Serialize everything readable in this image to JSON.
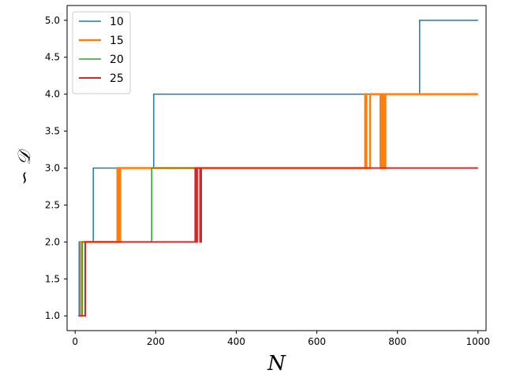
{
  "chart_data": {
    "type": "line",
    "title": "",
    "xlabel": "N",
    "ylabel": "∽ 𝒟",
    "xlim": [
      -20,
      1020
    ],
    "ylim": [
      0.8,
      5.2
    ],
    "xticks": [
      0,
      200,
      400,
      600,
      800,
      1000
    ],
    "yticks": [
      1.0,
      1.5,
      2.0,
      2.5,
      3.0,
      3.5,
      4.0,
      4.5,
      5.0
    ],
    "xtick_labels": [
      "0",
      "200",
      "400",
      "600",
      "800",
      "1000"
    ],
    "ytick_labels": [
      "1.0",
      "1.5",
      "2.0",
      "2.5",
      "3.0",
      "3.5",
      "4.0",
      "4.5",
      "5.0"
    ],
    "grid": false,
    "legend_position": "top-left",
    "series": [
      {
        "name": "10",
        "color": "#1f77b4",
        "width": 1.5,
        "points": [
          [
            10,
            1.0
          ],
          [
            10,
            2.0
          ],
          [
            45,
            2.0
          ],
          [
            45,
            3.0
          ],
          [
            195,
            3.0
          ],
          [
            195,
            4.0
          ],
          [
            855,
            4.0
          ],
          [
            855,
            5.0
          ],
          [
            1000,
            5.0
          ]
        ]
      },
      {
        "name": "15",
        "color": "#ff7f0e",
        "width": 2.5,
        "points": [
          [
            14,
            1.0
          ],
          [
            14,
            2.0
          ],
          [
            105,
            2.0
          ],
          [
            105,
            3.0
          ],
          [
            108,
            3.0
          ],
          [
            108,
            2.0
          ],
          [
            112,
            2.0
          ],
          [
            112,
            3.0
          ],
          [
            720,
            3.0
          ],
          [
            720,
            4.0
          ],
          [
            723,
            4.0
          ],
          [
            723,
            3.0
          ],
          [
            732,
            3.0
          ],
          [
            732,
            4.0
          ],
          [
            758,
            4.0
          ],
          [
            758,
            3.0
          ],
          [
            762,
            3.0
          ],
          [
            762,
            4.0
          ],
          [
            766,
            4.0
          ],
          [
            766,
            3.0
          ],
          [
            770,
            3.0
          ],
          [
            770,
            4.0
          ],
          [
            1000,
            4.0
          ]
        ]
      },
      {
        "name": "20",
        "color": "#2ca02c",
        "width": 1.5,
        "points": [
          [
            18,
            1.0
          ],
          [
            18,
            2.0
          ],
          [
            190,
            2.0
          ],
          [
            190,
            3.0
          ],
          [
            1000,
            3.0
          ]
        ]
      },
      {
        "name": "25",
        "color": "#d62728",
        "width": 2.0,
        "points": [
          [
            8,
            1.0
          ],
          [
            25,
            1.0
          ],
          [
            25,
            2.0
          ],
          [
            298,
            2.0
          ],
          [
            298,
            3.0
          ],
          [
            300,
            3.0
          ],
          [
            300,
            2.0
          ],
          [
            303,
            2.0
          ],
          [
            303,
            3.0
          ],
          [
            310,
            3.0
          ],
          [
            310,
            2.0
          ],
          [
            313,
            2.0
          ],
          [
            313,
            3.0
          ],
          [
            1000,
            3.0
          ]
        ]
      }
    ]
  }
}
